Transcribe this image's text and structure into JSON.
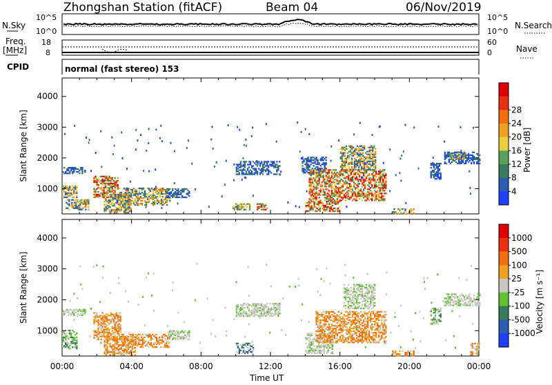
{
  "header": {
    "title": "Zhongshan Station (fitACF)",
    "beam": "Beam 04",
    "date": "06/Nov/2019"
  },
  "meta_panels": {
    "nsky_label": "N.Sky",
    "nsearch_label": "N.Search",
    "nsky_ticks": [
      "10^5",
      "10^0"
    ],
    "nsearch_ticks": [
      "10^5",
      "10^0"
    ],
    "freq_label": "Freq.",
    "freq_unit": "[MHz]",
    "freq_ticks": [
      "18",
      "8"
    ],
    "nave_label": "Nave",
    "nave_ticks": [
      "60",
      "0"
    ],
    "cpid_label": "CPID",
    "cpid_text": "normal (fast stereo) 153"
  },
  "chart_data": [
    {
      "type": "heatmap",
      "name": "power",
      "ylabel": "Slant Range [km]",
      "xlabel": "Time UT",
      "x_ticks": [
        "00:00",
        "04:00",
        "08:00",
        "12:00",
        "16:00",
        "20:00",
        "00:00"
      ],
      "y_ticks": [
        1000,
        2000,
        3000,
        4000
      ],
      "ylim": [
        180,
        4600
      ],
      "xlim_hours": [
        0,
        24
      ],
      "colorbar": {
        "label": "Power [dB]",
        "ticks": [
          "4",
          "8",
          "12",
          "16",
          "20",
          "24",
          "28"
        ],
        "colors": [
          "#1f3fff",
          "#2a5db0",
          "#3a7a5a",
          "#5aa05a",
          "#e8d040",
          "#f0a020",
          "#f07010",
          "#e83010",
          "#e00000"
        ]
      },
      "patches": [
        {
          "t0": 0.0,
          "t1": 1.3,
          "r0": 1480,
          "r1": 1700,
          "v": "low"
        },
        {
          "t0": 0.0,
          "t1": 0.8,
          "r0": 700,
          "r1": 1100,
          "v": "mid"
        },
        {
          "t0": 0.2,
          "t1": 1.5,
          "r0": 300,
          "r1": 650,
          "v": "mid"
        },
        {
          "t0": 1.8,
          "t1": 3.2,
          "r0": 700,
          "r1": 1400,
          "v": "high"
        },
        {
          "t0": 2.4,
          "t1": 4.0,
          "r0": 200,
          "r1": 800,
          "v": "mid"
        },
        {
          "t0": 3.2,
          "t1": 6.2,
          "r0": 450,
          "r1": 1000,
          "v": "mid"
        },
        {
          "t0": 6.0,
          "t1": 7.3,
          "r0": 700,
          "r1": 1000,
          "v": "low"
        },
        {
          "t0": 10.0,
          "t1": 12.5,
          "r0": 1450,
          "r1": 1900,
          "v": "low"
        },
        {
          "t0": 9.8,
          "t1": 10.8,
          "r0": 300,
          "r1": 500,
          "v": "mid"
        },
        {
          "t0": 11.2,
          "t1": 11.8,
          "r0": 300,
          "r1": 500,
          "v": "high"
        },
        {
          "t0": 13.8,
          "t1": 15.2,
          "r0": 1500,
          "r1": 2000,
          "v": "low"
        },
        {
          "t0": 14.0,
          "t1": 16.0,
          "r0": 250,
          "r1": 600,
          "v": "high"
        },
        {
          "t0": 14.2,
          "t1": 18.6,
          "r0": 600,
          "r1": 1600,
          "v": "high"
        },
        {
          "t0": 16.0,
          "t1": 18.0,
          "r0": 1600,
          "r1": 2400,
          "v": "mid"
        },
        {
          "t0": 19.0,
          "t1": 20.2,
          "r0": 180,
          "r1": 350,
          "v": "mid"
        },
        {
          "t0": 21.2,
          "t1": 21.8,
          "r0": 1300,
          "r1": 1800,
          "v": "low"
        },
        {
          "t0": 22.0,
          "t1": 24.0,
          "r0": 1800,
          "r1": 2200,
          "v": "low"
        },
        {
          "t0": 22.3,
          "t1": 23.2,
          "r0": 1950,
          "r1": 2150,
          "v": "mid"
        }
      ]
    },
    {
      "type": "heatmap",
      "name": "velocity",
      "ylabel": "Slant Range [km]",
      "xlabel": "Time UT",
      "x_ticks": [
        "00:00",
        "04:00",
        "08:00",
        "12:00",
        "16:00",
        "20:00",
        "00:00"
      ],
      "y_ticks": [
        1000,
        2000,
        3000,
        4000
      ],
      "ylim": [
        180,
        4600
      ],
      "xlim_hours": [
        0,
        24
      ],
      "colorbar": {
        "label": "Velocity [m s⁻¹]",
        "ticks": [
          "1000",
          "500",
          "100",
          "25",
          "-25",
          "-100",
          "-500",
          "-1000"
        ],
        "colors": [
          "#1f3fff",
          "#2a5db0",
          "#3a7a5a",
          "#5fc030",
          "#c8c8c0",
          "#f0a020",
          "#f07010",
          "#e83010",
          "#e00000"
        ]
      },
      "patches": [
        {
          "t0": 0.0,
          "t1": 1.3,
          "r0": 1480,
          "r1": 1700,
          "v": "grey"
        },
        {
          "t0": 0.0,
          "t1": 0.8,
          "r0": 400,
          "r1": 1000,
          "v": "green"
        },
        {
          "t0": 1.8,
          "t1": 3.4,
          "r0": 700,
          "r1": 1600,
          "v": "orange"
        },
        {
          "t0": 2.4,
          "t1": 4.2,
          "r0": 200,
          "r1": 800,
          "v": "orange"
        },
        {
          "t0": 3.4,
          "t1": 6.2,
          "r0": 450,
          "r1": 900,
          "v": "orange"
        },
        {
          "t0": 6.0,
          "t1": 7.3,
          "r0": 700,
          "r1": 1000,
          "v": "grey"
        },
        {
          "t0": 10.0,
          "t1": 12.5,
          "r0": 1450,
          "r1": 1900,
          "v": "grey"
        },
        {
          "t0": 10.0,
          "t1": 11.0,
          "r0": 250,
          "r1": 600,
          "v": "blue"
        },
        {
          "t0": 14.0,
          "t1": 15.6,
          "r0": 250,
          "r1": 900,
          "v": "grey"
        },
        {
          "t0": 14.6,
          "t1": 18.6,
          "r0": 600,
          "r1": 1600,
          "v": "orange"
        },
        {
          "t0": 16.2,
          "t1": 18.0,
          "r0": 1700,
          "r1": 2500,
          "v": "grey"
        },
        {
          "t0": 19.0,
          "t1": 20.2,
          "r0": 180,
          "r1": 350,
          "v": "orange"
        },
        {
          "t0": 21.2,
          "t1": 21.8,
          "r0": 1200,
          "r1": 1700,
          "v": "green"
        },
        {
          "t0": 22.0,
          "t1": 24.0,
          "r0": 1800,
          "r1": 2200,
          "v": "grey"
        },
        {
          "t0": 23.5,
          "t1": 24.0,
          "r0": 200,
          "r1": 600,
          "v": "orange"
        }
      ]
    }
  ]
}
